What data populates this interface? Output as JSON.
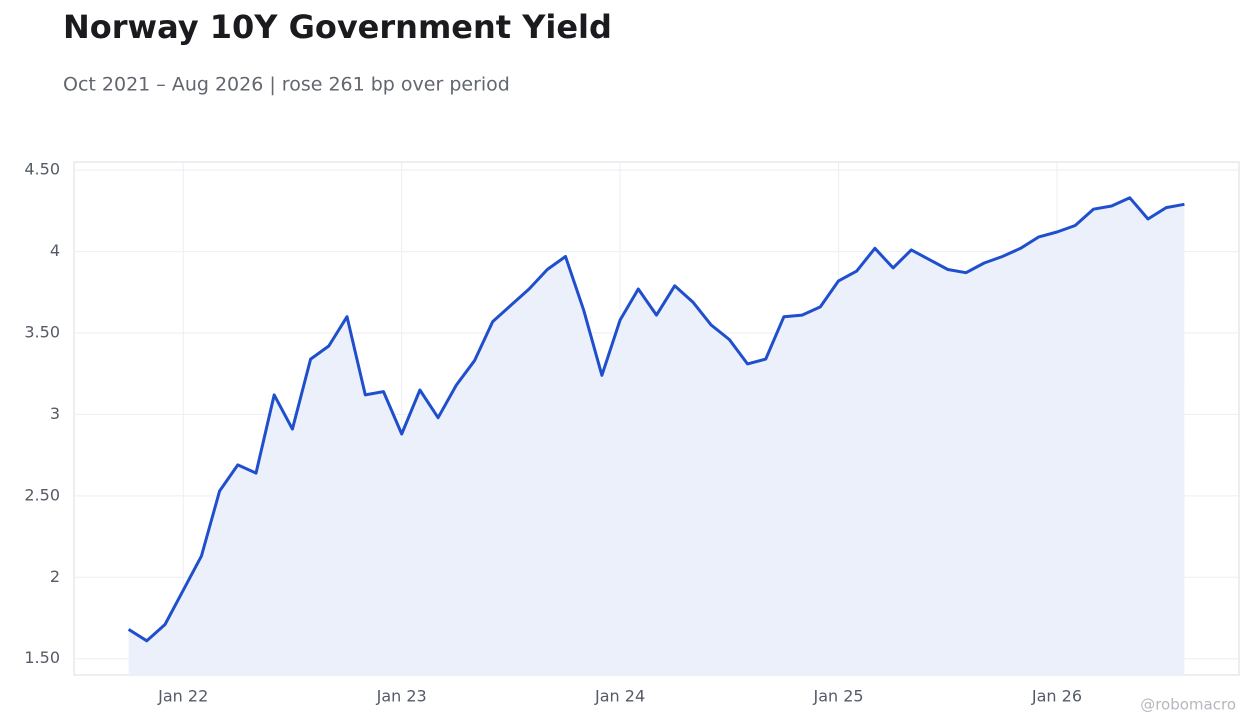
{
  "chart_data": {
    "type": "line",
    "title": "Norway 10Y Government Yield",
    "subtitle": "Oct 2021 – Aug 2026 | rose 261 bp over period",
    "watermark": "@robomacro",
    "x": [
      "2021-10",
      "2021-11",
      "2021-12",
      "2022-01",
      "2022-02",
      "2022-03",
      "2022-04",
      "2022-05",
      "2022-06",
      "2022-07",
      "2022-08",
      "2022-09",
      "2022-10",
      "2022-11",
      "2022-12",
      "2023-01",
      "2023-02",
      "2023-03",
      "2023-04",
      "2023-05",
      "2023-06",
      "2023-07",
      "2023-08",
      "2023-09",
      "2023-10",
      "2023-11",
      "2023-12",
      "2024-01",
      "2024-02",
      "2024-03",
      "2024-04",
      "2024-05",
      "2024-06",
      "2024-07",
      "2024-08",
      "2024-09",
      "2024-10",
      "2024-11",
      "2024-12",
      "2025-01",
      "2025-02",
      "2025-03",
      "2025-04",
      "2025-05",
      "2025-06",
      "2025-07",
      "2025-08",
      "2025-09",
      "2025-10",
      "2025-11",
      "2025-12",
      "2026-01",
      "2026-02",
      "2026-03",
      "2026-04",
      "2026-05",
      "2026-06",
      "2026-07",
      "2026-08"
    ],
    "series": [
      {
        "name": "Norway 10Y",
        "color": "#1f4fcc",
        "fill": "#ebeffb",
        "values": [
          1.68,
          1.61,
          1.71,
          1.92,
          2.13,
          2.53,
          2.69,
          2.64,
          3.12,
          2.91,
          3.34,
          3.42,
          3.6,
          3.12,
          3.14,
          2.88,
          3.15,
          2.98,
          3.18,
          3.33,
          3.57,
          3.67,
          3.77,
          3.89,
          3.97,
          3.64,
          3.24,
          3.58,
          3.77,
          3.61,
          3.79,
          3.69,
          3.55,
          3.46,
          3.31,
          3.34,
          3.6,
          3.61,
          3.66,
          3.82,
          3.88,
          4.02,
          3.9,
          4.01,
          3.95,
          3.89,
          3.87,
          3.93,
          3.97,
          4.02,
          4.09,
          4.12,
          4.16,
          4.26,
          4.28,
          4.33,
          4.2,
          4.27,
          4.29
        ]
      }
    ],
    "xlim": [
      "2021-07",
      "2026-11"
    ],
    "xticks": [
      {
        "value": "2022-01",
        "label": "Jan 22"
      },
      {
        "value": "2023-01",
        "label": "Jan 23"
      },
      {
        "value": "2024-01",
        "label": "Jan 24"
      },
      {
        "value": "2025-01",
        "label": "Jan 25"
      },
      {
        "value": "2026-01",
        "label": "Jan 26"
      }
    ],
    "ylim": [
      1.4,
      4.55
    ],
    "yticks": [
      {
        "value": 1.5,
        "label": "1.50"
      },
      2,
      {
        "value": 2.5,
        "label": "2.50"
      },
      3,
      {
        "value": 3.5,
        "label": "3.50"
      },
      4,
      {
        "value": 4.5,
        "label": "4.50"
      }
    ],
    "grid": true
  }
}
